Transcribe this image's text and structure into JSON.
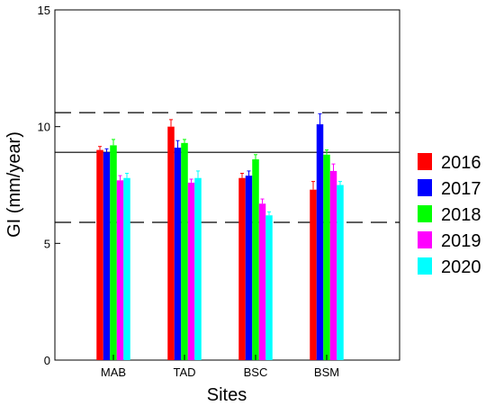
{
  "chart_data": {
    "type": "bar",
    "title": "",
    "xlabel": "Sites",
    "ylabel": "GI (mm/year)",
    "ylim": [
      0,
      15
    ],
    "yticks": [
      0,
      5,
      10,
      15
    ],
    "categories": [
      "MAB",
      "TAD",
      "BSC",
      "BSM"
    ],
    "legend_position": "right",
    "series": [
      {
        "name": "2016",
        "color": "#ff0000",
        "values": [
          9.0,
          10.0,
          7.8,
          7.3
        ],
        "errors": [
          0.15,
          0.3,
          0.2,
          0.35
        ]
      },
      {
        "name": "2017",
        "color": "#0000ff",
        "values": [
          8.9,
          9.1,
          7.9,
          10.1
        ],
        "errors": [
          0.15,
          0.3,
          0.2,
          0.45
        ]
      },
      {
        "name": "2018",
        "color": "#00ff00",
        "values": [
          9.2,
          9.3,
          8.6,
          8.8
        ],
        "errors": [
          0.25,
          0.15,
          0.2,
          0.2
        ]
      },
      {
        "name": "2019",
        "color": "#ff00ff",
        "values": [
          7.7,
          7.6,
          6.7,
          8.1
        ],
        "errors": [
          0.2,
          0.15,
          0.2,
          0.3
        ]
      },
      {
        "name": "2020",
        "color": "#00ffff",
        "values": [
          7.8,
          7.8,
          6.2,
          7.5
        ],
        "errors": [
          0.2,
          0.3,
          0.15,
          0.15
        ]
      }
    ],
    "reference_lines": [
      {
        "style": "solid",
        "value": 8.9
      },
      {
        "style": "dashed",
        "value": 10.6
      },
      {
        "style": "dashed",
        "value": 5.9
      }
    ]
  }
}
